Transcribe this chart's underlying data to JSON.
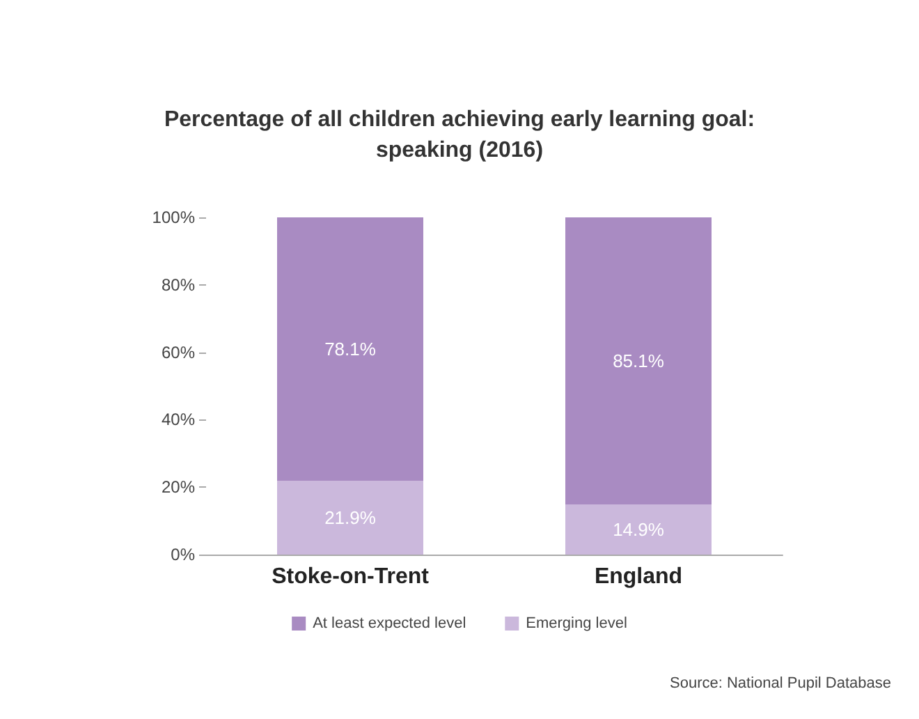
{
  "chart_data": {
    "type": "bar",
    "title": "Percentage of all children achieving early learning goal:\nspeaking (2016)",
    "categories": [
      "Stoke-on-Trent",
      "England"
    ],
    "stacked": true,
    "series": [
      {
        "name": "Emerging level",
        "color": "#cbb8dc",
        "values": [
          21.9,
          14.9
        ],
        "value_labels": [
          "21.9%",
          "14.9%"
        ]
      },
      {
        "name": "At least expected level",
        "color": "#a98bc2",
        "values": [
          78.1,
          85.1
        ],
        "value_labels": [
          "78.1%",
          "85.1%"
        ]
      }
    ],
    "ylim": [
      0,
      100
    ],
    "yticks": [
      {
        "value": 0,
        "label": "0%"
      },
      {
        "value": 20,
        "label": "20%"
      },
      {
        "value": 40,
        "label": "40%"
      },
      {
        "value": 60,
        "label": "60%"
      },
      {
        "value": 80,
        "label": "80%"
      },
      {
        "value": 100,
        "label": "100%"
      }
    ],
    "grid": false,
    "legend": "bottom",
    "annotations": [
      "Source: National Pupil Database"
    ]
  }
}
